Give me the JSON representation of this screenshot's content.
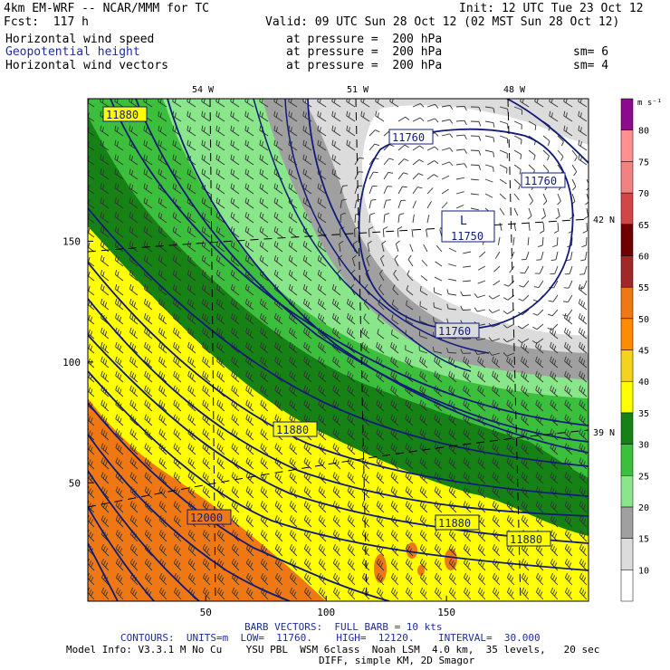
{
  "header": {
    "line1_left": "4km EM-WRF -- NCAR/MMM for TC",
    "line1_right": "Init: 12 UTC Tue 23 Oct 12",
    "line2_left": "Fcst:  117 h",
    "line2_right": "Valid: 09 UTC Sun 28 Oct 12 (02 MST Sun 28 Oct 12)",
    "fields": [
      {
        "name": "Horizontal wind speed",
        "level": "at pressure =  200 hPa",
        "sm": ""
      },
      {
        "name": "Geopotential height",
        "level": "at pressure =  200 hPa",
        "sm": "sm= 6"
      },
      {
        "name": "Horizontal wind vectors",
        "level": "at pressure =  200 hPa",
        "sm": "sm= 4"
      }
    ]
  },
  "chart_data": {
    "type": "contour map",
    "x_ticks": [
      50,
      100,
      150
    ],
    "y_ticks": [
      50,
      100,
      150
    ],
    "xlim": [
      1,
      209
    ],
    "ylim": [
      1,
      209
    ],
    "longitude_labels": [
      "54 W",
      "51 W",
      "48 W"
    ],
    "latitude_labels": [
      "42 N",
      "39 N"
    ],
    "colorbar": {
      "unit": "m s⁻¹",
      "levels": [
        10,
        15,
        20,
        25,
        30,
        35,
        40,
        45,
        50,
        55,
        60,
        65,
        70,
        75,
        80
      ],
      "colors": [
        "#ffffff",
        "#dcdcdc",
        "#a0a0a0",
        "#8ae68a",
        "#3cbf3c",
        "#168216",
        "#ffff00",
        "#f5d21e",
        "#ff8c00",
        "#f07814",
        "#a02828",
        "#6e0000",
        "#d24646",
        "#f08282",
        "#ff9090",
        "#8c0a8c"
      ]
    },
    "height_contour_labels": [
      "11880",
      "11760",
      "11760",
      "11760",
      "11750",
      "11880",
      "11880",
      "11880",
      "12000"
    ],
    "low_center": {
      "label": "L",
      "value": "11750"
    },
    "wind_speed_regions_ms": [
      {
        "range": "< 10",
        "location": "north-east, around the low"
      },
      {
        "range": "10-15",
        "location": "ring around the low"
      },
      {
        "range": "15-20",
        "location": "outer ring"
      },
      {
        "range": "25-30",
        "location": "band NW to SE"
      },
      {
        "range": "30-40",
        "location": "jet core band"
      },
      {
        "range": "40-50",
        "location": "southern half"
      },
      {
        "range": "50-60",
        "location": "south-west corner"
      }
    ]
  },
  "footer": {
    "barb_note": "BARB VECTORS:  FULL BARB = 10 kts",
    "contours": "CONTOURS:  UNITS=m  LOW=  11760.    HIGH=  12120.    INTERVAL=  30.000",
    "model_info": "Model Info: V3.3.1 M No Cu    YSU PBL  WSM 6class  Noah LSM  4.0 km,  35 levels,   20 sec",
    "model_info2": "DIFF, simple KM, 2D Smagor"
  }
}
